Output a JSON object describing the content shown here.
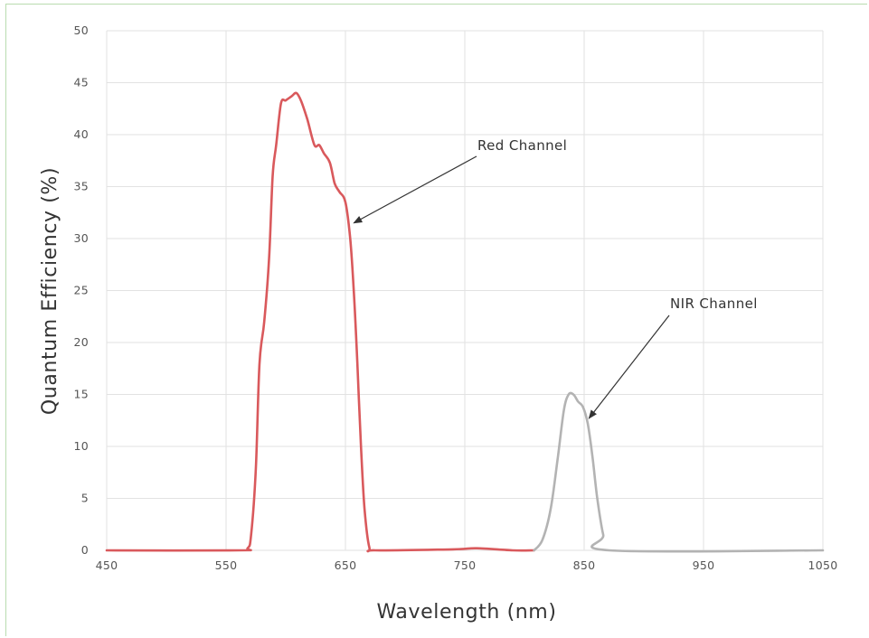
{
  "chart_data": {
    "type": "line",
    "title": "",
    "xlabel": "Wavelength (nm)",
    "ylabel": "Quantum Efficiency (%)",
    "xlim": [
      450,
      1050
    ],
    "ylim": [
      0,
      50
    ],
    "x_ticks": [
      450,
      550,
      650,
      750,
      850,
      950,
      1050
    ],
    "y_ticks": [
      0,
      5,
      10,
      15,
      20,
      25,
      30,
      35,
      40,
      45,
      50
    ],
    "grid": true,
    "legend": "none",
    "series": [
      {
        "color": "#d9595c",
        "points": [
          [
            450,
            0
          ],
          [
            560,
            0
          ],
          [
            568,
            0.2
          ],
          [
            571,
            1.5
          ],
          [
            575,
            8
          ],
          [
            578,
            18
          ],
          [
            582,
            22
          ],
          [
            586,
            28
          ],
          [
            589,
            36
          ],
          [
            592,
            39
          ],
          [
            596,
            43
          ],
          [
            600,
            43.3
          ],
          [
            605,
            43.7
          ],
          [
            609,
            44
          ],
          [
            613,
            43.2
          ],
          [
            618,
            41.5
          ],
          [
            624,
            39
          ],
          [
            628,
            39
          ],
          [
            632,
            38.2
          ],
          [
            637,
            37.3
          ],
          [
            641,
            35.3
          ],
          [
            645,
            34.5
          ],
          [
            650,
            33.5
          ],
          [
            654,
            30
          ],
          [
            657,
            25
          ],
          [
            660,
            18
          ],
          [
            663,
            10
          ],
          [
            666,
            4
          ],
          [
            670,
            0.3
          ],
          [
            675,
            0
          ],
          [
            740,
            0.1
          ],
          [
            760,
            0.2
          ],
          [
            790,
            0
          ],
          [
            808,
            0
          ]
        ]
      },
      {
        "color": "#b3b3b3",
        "points": [
          [
            808,
            0
          ],
          [
            815,
            1
          ],
          [
            822,
            4
          ],
          [
            828,
            9
          ],
          [
            833,
            13.5
          ],
          [
            837,
            15
          ],
          [
            841,
            15
          ],
          [
            845,
            14.3
          ],
          [
            849,
            13.8
          ],
          [
            853,
            12.2
          ],
          [
            857,
            9
          ],
          [
            861,
            5
          ],
          [
            866,
            1.5
          ],
          [
            871,
            0
          ],
          [
            1050,
            0
          ]
        ]
      }
    ],
    "annotations": [
      {
        "text": "Red Channel",
        "point_to": [
          657,
          31.5
        ]
      },
      {
        "text": "NIR Channel",
        "point_to": [
          854,
          12.7
        ]
      }
    ]
  }
}
